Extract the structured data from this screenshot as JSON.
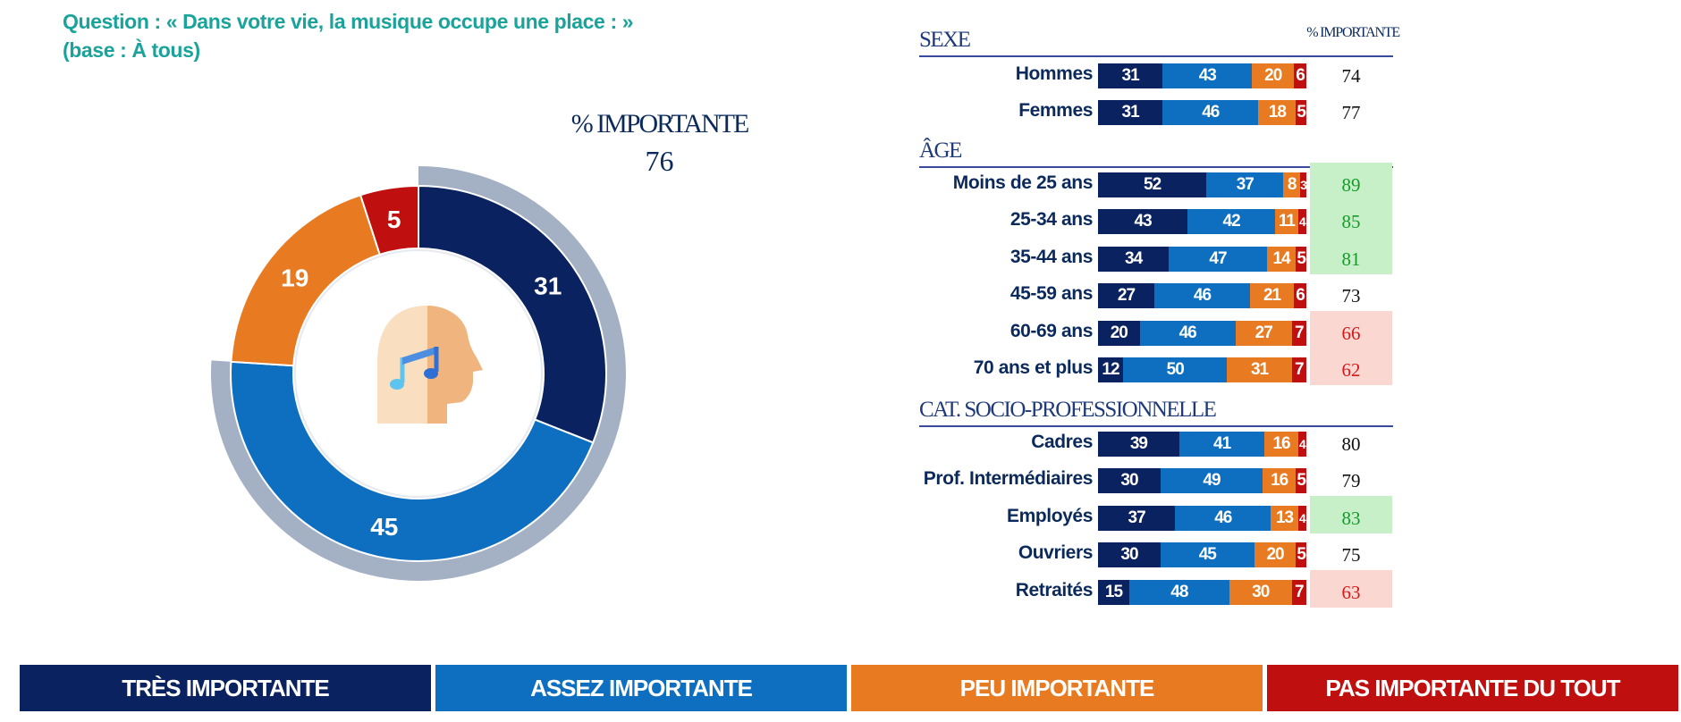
{
  "question": {
    "line1": "Question : « Dans votre vie, la musique occupe une place : »",
    "line2": "(base : À tous)"
  },
  "colors": {
    "tres": "#0b2260",
    "assez": "#0e6fc1",
    "peu": "#e87b22",
    "pas": "#c00f0f",
    "ring": "#a4b0c4"
  },
  "icon": "head-music-icon",
  "kpi": {
    "title": "% IMPORTANTE",
    "value": "76"
  },
  "table_header": "% IMPORTANTE",
  "legend": [
    "TRÈS IMPORTANTE",
    "ASSEZ IMPORTANTE",
    "PEU IMPORTANTE",
    "PAS IMPORTANTE DU TOUT"
  ],
  "chart_data": [
    {
      "type": "pie",
      "categories": [
        "TRÈS IMPORTANTE",
        "ASSEZ IMPORTANTE",
        "PEU IMPORTANTE",
        "PAS IMPORTANTE DU TOUT"
      ],
      "values": [
        31,
        45,
        19,
        5
      ],
      "annotations": [
        "% IMPORTANTE",
        "76"
      ]
    },
    {
      "type": "bar",
      "stacked": true,
      "orientation": "horizontal",
      "series_names": [
        "TRÈS IMPORTANTE",
        "ASSEZ IMPORTANTE",
        "PEU IMPORTANTE",
        "PAS IMPORTANTE DU TOUT"
      ],
      "total_column": "% IMPORTANTE",
      "groups": [
        {
          "title": "SEXE",
          "rows": [
            {
              "label": "Hommes",
              "values": [
                31,
                43,
                20,
                6
              ],
              "total": "74",
              "highlight": "none"
            },
            {
              "label": "Femmes",
              "values": [
                31,
                46,
                18,
                5
              ],
              "total": "77",
              "highlight": "none"
            }
          ]
        },
        {
          "title": "ÂGE",
          "rows": [
            {
              "label": "Moins de 25 ans",
              "values": [
                52,
                37,
                8,
                3
              ],
              "total": "89",
              "highlight": "up"
            },
            {
              "label": "25-34 ans",
              "values": [
                43,
                42,
                11,
                4
              ],
              "total": "85",
              "highlight": "up"
            },
            {
              "label": "35-44 ans",
              "values": [
                34,
                47,
                14,
                5
              ],
              "total": "81",
              "highlight": "up"
            },
            {
              "label": "45-59 ans",
              "values": [
                27,
                46,
                21,
                6
              ],
              "total": "73",
              "highlight": "none"
            },
            {
              "label": "60-69 ans",
              "values": [
                20,
                46,
                27,
                7
              ],
              "total": "66",
              "highlight": "down"
            },
            {
              "label": "70 ans et plus",
              "values": [
                12,
                50,
                31,
                7
              ],
              "total": "62",
              "highlight": "down"
            }
          ]
        },
        {
          "title": "CAT. SOCIO-PROFESSIONNELLE",
          "rows": [
            {
              "label": "Cadres",
              "values": [
                39,
                41,
                16,
                4
              ],
              "total": "80",
              "highlight": "none"
            },
            {
              "label": "Prof. Intermédiaires",
              "values": [
                30,
                49,
                16,
                5
              ],
              "total": "79",
              "highlight": "none"
            },
            {
              "label": "Employés",
              "values": [
                37,
                46,
                13,
                4
              ],
              "total": "83",
              "highlight": "up"
            },
            {
              "label": "Ouvriers",
              "values": [
                30,
                45,
                20,
                5
              ],
              "total": "75",
              "highlight": "none"
            },
            {
              "label": "Retraités",
              "values": [
                15,
                48,
                30,
                7
              ],
              "total": "63",
              "highlight": "down"
            }
          ]
        }
      ]
    }
  ]
}
